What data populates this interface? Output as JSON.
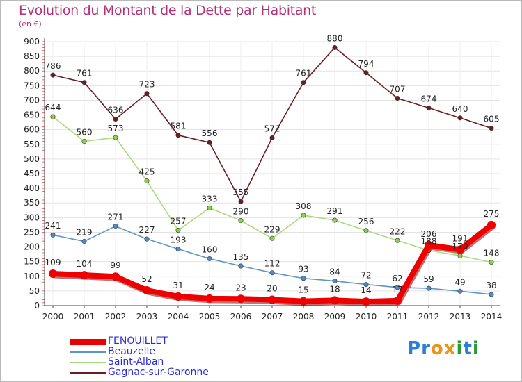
{
  "title": "Evolution du Montant de la Dette par Habitant",
  "subtitle": "(en €)",
  "brand": {
    "letters": [
      "P",
      "r",
      "o",
      "x",
      "i",
      "t",
      "i"
    ],
    "colors": [
      "#2b7fd4",
      "#2b7fd4",
      "#e8951c",
      "#e8951c",
      "#2b9a3a",
      "#2b7fd4",
      "#2b9a3a"
    ]
  },
  "chart_data": {
    "type": "line",
    "categories": [
      "2000",
      "2001",
      "2002",
      "2003",
      "2004",
      "2005",
      "2006",
      "2007",
      "2008",
      "2009",
      "2010",
      "2011",
      "2012",
      "2013",
      "2014"
    ],
    "ylim": [
      0,
      900
    ],
    "yticks": [
      "0",
      "50",
      "100",
      "150",
      "200",
      "250",
      "300",
      "350",
      "400",
      "450",
      "500",
      "550",
      "600",
      "650",
      "700",
      "750",
      "800",
      "850",
      "900"
    ],
    "grid": true,
    "legend_position": "bottom-left",
    "series": [
      {
        "name": "Gagnac-sur-Garonne",
        "color": "#6b1d22",
        "marker": "#6b1d22",
        "highlight": false,
        "values": [
          786,
          761,
          636,
          723,
          581,
          556,
          355,
          572,
          761,
          880,
          794,
          707,
          674,
          640,
          605
        ]
      },
      {
        "name": "Saint-Alban",
        "color": "#a8dc7c",
        "marker": "#8cd24a",
        "highlight": false,
        "values": [
          644,
          560,
          573,
          425,
          257,
          333,
          290,
          229,
          308,
          291,
          256,
          222,
          188,
          170,
          148
        ]
      },
      {
        "name": "Beauzelle",
        "color": "#5d95c8",
        "marker": "#4d8ccd",
        "highlight": false,
        "values": [
          241,
          219,
          271,
          227,
          193,
          160,
          135,
          112,
          93,
          84,
          72,
          62,
          59,
          49,
          38
        ]
      },
      {
        "name": "FENOUILLET",
        "color": "#ee0000",
        "marker": "#ee0000",
        "highlight": true,
        "values": [
          109,
          104,
          99,
          52,
          31,
          24,
          23,
          20,
          15,
          18,
          14,
          17,
          206,
          191,
          275
        ]
      }
    ]
  },
  "legend": [
    {
      "label": "FENOUILLET",
      "color": "#ee0000",
      "text_color": "#2b2bd6",
      "width": 9
    },
    {
      "label": "Beauzelle",
      "color": "#5d95c8",
      "text_color": "#2b2bd6",
      "width": 2
    },
    {
      "label": "Saint-Alban",
      "color": "#a8dc7c",
      "text_color": "#2b2bd6",
      "width": 2
    },
    {
      "label": "Gagnac-sur-Garonne",
      "color": "#6b1d22",
      "text_color": "#2b2bd6",
      "width": 2
    }
  ]
}
